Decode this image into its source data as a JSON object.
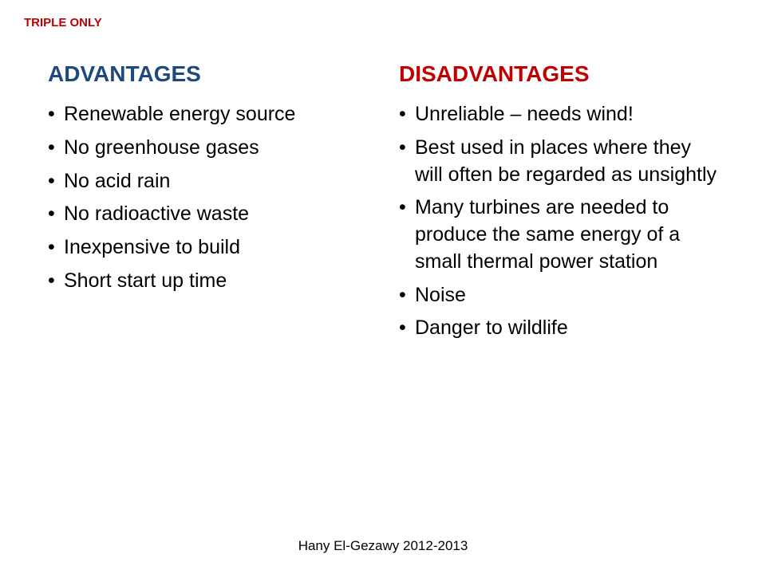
{
  "tag": "TRIPLE ONLY",
  "left": {
    "heading": "ADVANTAGES",
    "headingColor": "#1f497d",
    "items": [
      "Renewable energy source",
      "No greenhouse gases",
      "No acid rain",
      "No radioactive waste",
      "Inexpensive to build",
      "Short start up time"
    ]
  },
  "right": {
    "heading": "DISADVANTAGES",
    "headingColor": "#c00000",
    "items": [
      "Unreliable – needs wind!",
      "Best used in places where they will often be regarded as unsightly",
      "Many turbines are needed to produce the same energy of a small thermal power station",
      "Noise",
      "Danger to wildlife"
    ]
  },
  "footer": "Hany El-Gezawy 2012-2013",
  "style": {
    "background": "#ffffff",
    "body_font": "Arial",
    "tag_fontsize": 15,
    "heading_fontsize": 28,
    "item_fontsize": 25,
    "footer_fontsize": 17,
    "text_color": "#000000"
  }
}
